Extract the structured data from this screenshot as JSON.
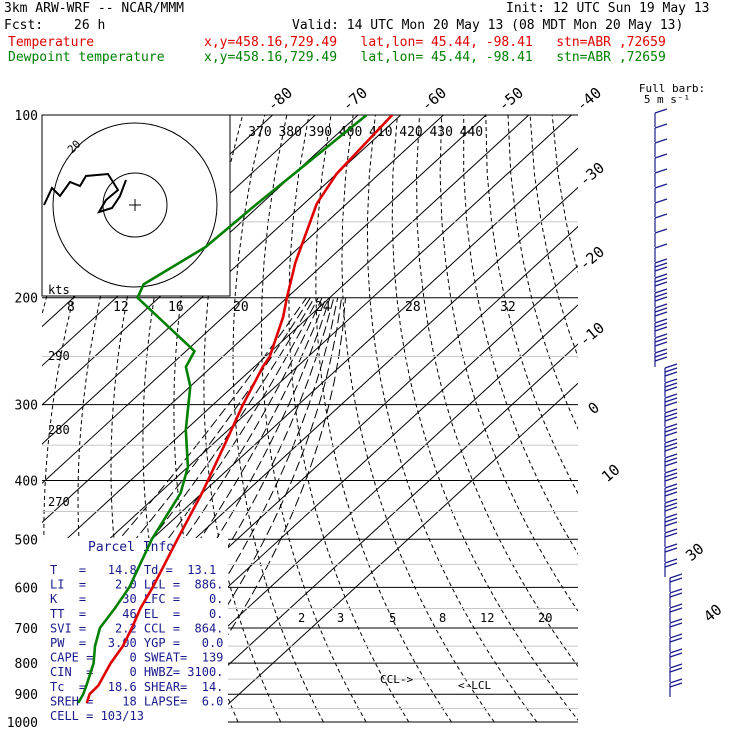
{
  "header": {
    "model": "3km ARW-WRF -- NCAR/MMM",
    "init": "Init: 12 UTC Sun 19 May 13",
    "fcst_label": "Fcst:",
    "fcst_value": "26 h",
    "valid": "Valid: 14 UTC Mon 20 May 13 (08 MDT Mon 20 May 13)",
    "temp_label": "Temperature",
    "temp_info": "x,y=458.16,729.49   lat,lon= 45.44, -98.41   stn=ABR ,72659",
    "dew_label": "Dewpoint temperature",
    "dew_info": "x,y=458.16,729.49   lat,lon= 45.44, -98.41   stn=ABR ,72659"
  },
  "colors": {
    "temperature": "#e00000",
    "dewpoint": "#008000",
    "wind_barbs": "#1a1a8c",
    "grid": "#000000"
  },
  "barb_legend": {
    "line1": "Full barb:",
    "line2": "5 m s⁻¹"
  },
  "parcel_info": {
    "title": "Parcel Info",
    "rows": [
      "T   =   14.8 Td =  13.1",
      "LI  =    2.0 LCL =  886.",
      "K   =     30 LFC =    0.",
      "TT  =     46 EL  =    0.",
      "SVI =    2.2 CCL =  864.",
      "PW  =   3.00 YGP =   0.0",
      "CAPE =     0 SWEAT=  139",
      "CIN  =     0 HWBZ= 3100.",
      "Tc  =   18.6 SHEAR=  14.",
      "SREH =    18 LAPSE=  6.0",
      "CELL = 103/13"
    ]
  },
  "hodograph": {
    "units_label": "kts",
    "ring_labels": [
      "8",
      "12",
      "16",
      "20"
    ],
    "ring_value_label": "20"
  },
  "theta_labels": [
    "370",
    "380",
    "390",
    "400",
    "410",
    "420",
    "430",
    "440"
  ],
  "theta_e_labels": [
    "290",
    "280",
    "270"
  ],
  "mixing_ratio_labels": [
    "2",
    "3",
    "5",
    "8",
    "12",
    "20"
  ],
  "mixing_ratio_bottom": [
    "24",
    "28",
    "32"
  ],
  "level_markers": {
    "ccl": "CCL->",
    "lcl": "<-LCL"
  },
  "chart_data": {
    "type": "line",
    "title": "",
    "xlabel": "",
    "ylabel": "",
    "y_scale": "log-pressure (hPa, inverted)",
    "ylim": [
      1000,
      100
    ],
    "pressure_ticks": [
      100,
      200,
      300,
      400,
      500,
      600,
      700,
      800,
      900,
      1000
    ],
    "skewed_temperature_ticks": [
      -80,
      -70,
      -60,
      -50,
      -40,
      -30,
      -20,
      -10,
      0,
      10,
      20,
      30,
      40
    ],
    "series": [
      {
        "name": "Temperature",
        "pressure_hPa": [
          929,
          900,
          870,
          800,
          750,
          700,
          650,
          600,
          500,
          420,
          350,
          300,
          260,
          250,
          215,
          200,
          175,
          140,
          125,
          100
        ],
        "temperature_C": [
          16.5,
          15.0,
          14.8,
          12.0,
          10.5,
          8.0,
          5.0,
          2.5,
          -4.0,
          -10.0,
          -17.0,
          -23.0,
          -28.0,
          -29.0,
          -36.0,
          -40.0,
          -47.0,
          -57.0,
          -60.0,
          -62.0
        ]
      },
      {
        "name": "Dewpoint temperature",
        "pressure_hPa": [
          929,
          900,
          870,
          800,
          750,
          700,
          650,
          600,
          500,
          420,
          380,
          330,
          280,
          260,
          245,
          200,
          190,
          165,
          140,
          100
        ],
        "temperature_C": [
          14.5,
          13.5,
          12.0,
          8.0,
          4.0,
          0.5,
          -1.0,
          -3.0,
          -10.0,
          -15.0,
          -20.0,
          -30.0,
          -40.0,
          -46.0,
          -48.0,
          -75.0,
          -77.0,
          -72.0,
          -71.0,
          -68.0
        ]
      }
    ]
  }
}
